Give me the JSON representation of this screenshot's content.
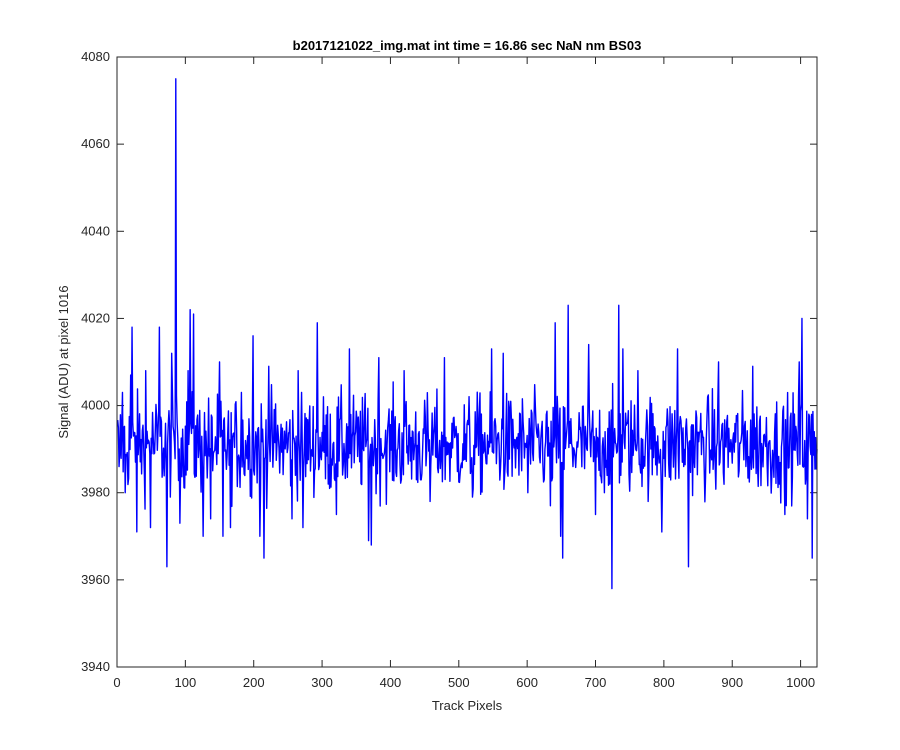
{
  "chart_data": {
    "type": "line",
    "title": "b2017121022_img.mat int time = 16.86 sec  NaN nm BS03",
    "xlabel": "Track Pixels",
    "ylabel": "Signal (ADU) at pixel 1016",
    "xlim": [
      0,
      1024
    ],
    "ylim": [
      3940,
      4080
    ],
    "xticks": [
      0,
      100,
      200,
      300,
      400,
      500,
      600,
      700,
      800,
      900,
      1000
    ],
    "yticks": [
      3940,
      3960,
      3980,
      4000,
      4020,
      4040,
      4060,
      4080
    ],
    "grid": false,
    "legend": "none",
    "series": [
      {
        "color": "#0000ff",
        "baseline": 3991,
        "noise_amplitude": 9,
        "n_points": 1024,
        "notable_points": [
          {
            "x": 3,
            "y": 3986
          },
          {
            "x": 8,
            "y": 4003
          },
          {
            "x": 12,
            "y": 3980
          },
          {
            "x": 20,
            "y": 4007
          },
          {
            "x": 22,
            "y": 4018
          },
          {
            "x": 24,
            "y": 3993
          },
          {
            "x": 29,
            "y": 3971
          },
          {
            "x": 42,
            "y": 4008
          },
          {
            "x": 49,
            "y": 3972
          },
          {
            "x": 62,
            "y": 4018
          },
          {
            "x": 73,
            "y": 3963
          },
          {
            "x": 80,
            "y": 4012
          },
          {
            "x": 86,
            "y": 4075
          },
          {
            "x": 88,
            "y": 3996
          },
          {
            "x": 92,
            "y": 3973
          },
          {
            "x": 104,
            "y": 4008
          },
          {
            "x": 107,
            "y": 4022
          },
          {
            "x": 112,
            "y": 4021
          },
          {
            "x": 126,
            "y": 3970
          },
          {
            "x": 137,
            "y": 3974
          },
          {
            "x": 150,
            "y": 4010
          },
          {
            "x": 155,
            "y": 3970
          },
          {
            "x": 166,
            "y": 3972
          },
          {
            "x": 182,
            "y": 4003
          },
          {
            "x": 199,
            "y": 4016
          },
          {
            "x": 209,
            "y": 3970
          },
          {
            "x": 215,
            "y": 3965
          },
          {
            "x": 222,
            "y": 4009
          },
          {
            "x": 256,
            "y": 3974
          },
          {
            "x": 265,
            "y": 4008
          },
          {
            "x": 272,
            "y": 3972
          },
          {
            "x": 293,
            "y": 4019
          },
          {
            "x": 321,
            "y": 3975
          },
          {
            "x": 340,
            "y": 4013
          },
          {
            "x": 368,
            "y": 3969
          },
          {
            "x": 372,
            "y": 3968
          },
          {
            "x": 383,
            "y": 4011
          },
          {
            "x": 420,
            "y": 4008
          },
          {
            "x": 458,
            "y": 3978
          },
          {
            "x": 479,
            "y": 4011
          },
          {
            "x": 520,
            "y": 3979
          },
          {
            "x": 548,
            "y": 4013
          },
          {
            "x": 565,
            "y": 4012
          },
          {
            "x": 601,
            "y": 3980
          },
          {
            "x": 634,
            "y": 3977
          },
          {
            "x": 641,
            "y": 4019
          },
          {
            "x": 649,
            "y": 3970
          },
          {
            "x": 652,
            "y": 3965
          },
          {
            "x": 660,
            "y": 4023
          },
          {
            "x": 690,
            "y": 4014
          },
          {
            "x": 700,
            "y": 3975
          },
          {
            "x": 724,
            "y": 3958
          },
          {
            "x": 734,
            "y": 4023
          },
          {
            "x": 740,
            "y": 4013
          },
          {
            "x": 762,
            "y": 4008
          },
          {
            "x": 797,
            "y": 3971
          },
          {
            "x": 820,
            "y": 4013
          },
          {
            "x": 836,
            "y": 3963
          },
          {
            "x": 880,
            "y": 4010
          },
          {
            "x": 930,
            "y": 4009
          },
          {
            "x": 977,
            "y": 3975
          },
          {
            "x": 998,
            "y": 4010
          },
          {
            "x": 1002,
            "y": 4020
          },
          {
            "x": 1010,
            "y": 3974
          },
          {
            "x": 1017,
            "y": 3965
          },
          {
            "x": 1020,
            "y": 3994
          },
          {
            "x": 1024,
            "y": 3990
          }
        ]
      }
    ]
  }
}
